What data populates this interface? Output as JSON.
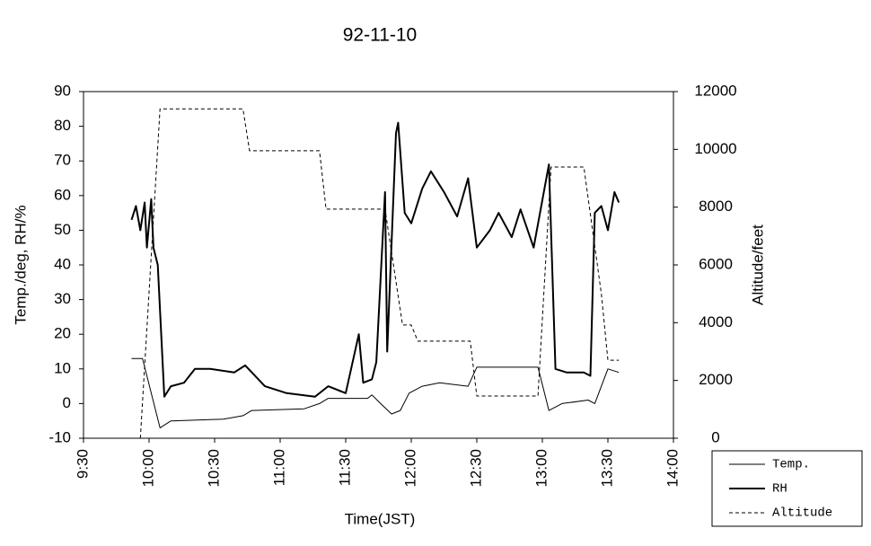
{
  "chart_data": {
    "type": "line",
    "title": "92-11-10",
    "x_label": "Time(JST)",
    "y_label": "Temp./deg, RH/%",
    "y2_label": "Altitude/feet",
    "xlim": [
      "9:30",
      "14:00"
    ],
    "xticks": [
      "9:30",
      "10:00",
      "10:30",
      "11:00",
      "11:30",
      "12:00",
      "12:30",
      "13:00",
      "13:30",
      "14:00"
    ],
    "ylim": [
      -10,
      90
    ],
    "yticks": [
      -10,
      0,
      10,
      20,
      30,
      40,
      50,
      60,
      70,
      80,
      90
    ],
    "y2lim": [
      0,
      12000
    ],
    "y2ticks": [
      0,
      2000,
      4000,
      6000,
      8000,
      10000,
      12000
    ],
    "series": [
      {
        "name": "Temp.",
        "color": "#000000",
        "linestyle": "solid",
        "linewidth": 1,
        "x": [
          "9:52",
          "9:57",
          "10:05",
          "10:10",
          "10:34",
          "10:43",
          "10:47",
          "11:11",
          "11:18",
          "11:22",
          "11:40",
          "11:42",
          "11:46",
          "11:51",
          "11:55",
          "11:59",
          "12:05",
          "12:13",
          "12:26",
          "12:30",
          "12:58",
          "13:03",
          "13:09",
          "13:21",
          "13:24",
          "13:27",
          "13:30",
          "13:35"
        ],
        "values": [
          13,
          13,
          -7,
          -5,
          -4.5,
          -3.5,
          -2,
          -1.5,
          0,
          1.5,
          1.5,
          2.5,
          0,
          -3,
          -2,
          3,
          5,
          6,
          5,
          10.5,
          10.5,
          -2,
          0,
          1,
          0,
          5,
          10,
          9
        ]
      },
      {
        "name": "RH",
        "color": "#000000",
        "linestyle": "solid",
        "linewidth": 2,
        "x": [
          "9:52",
          "9:54",
          "9:56",
          "9:58",
          "9:59",
          "10:01",
          "10:02",
          "10:04",
          "10:07",
          "10:10",
          "10:16",
          "10:21",
          "10:28",
          "10:39",
          "10:44",
          "10:53",
          "11:03",
          "11:16",
          "11:22",
          "11:30",
          "11:36",
          "11:38",
          "11:42",
          "11:44",
          "11:48",
          "11:49",
          "11:53",
          "11:54",
          "11:57",
          "12:00",
          "12:05",
          "12:09",
          "12:15",
          "12:21",
          "12:26",
          "12:30",
          "12:36",
          "12:40",
          "12:46",
          "12:50",
          "12:56",
          "13:03",
          "13:06",
          "13:11",
          "13:19",
          "13:22",
          "13:24",
          "13:27",
          "13:30",
          "13:33",
          "13:35"
        ],
        "values": [
          53,
          57,
          50,
          58,
          45,
          59,
          45,
          40,
          2,
          5,
          6,
          10,
          10,
          9,
          11,
          5,
          3,
          2,
          5,
          3,
          20,
          6,
          7,
          12,
          61,
          15,
          78,
          81,
          55,
          52,
          62,
          67,
          61,
          54,
          65,
          45,
          50,
          55,
          48,
          56,
          45,
          69,
          10,
          9,
          9,
          8,
          55,
          57,
          50,
          61,
          58
        ]
      },
      {
        "name": "Altitude",
        "color": "#000000",
        "linestyle": "dashed",
        "linewidth": 1,
        "axis": "y2",
        "x": [
          "9:56",
          "10:05",
          "10:43",
          "10:46",
          "11:18",
          "11:21",
          "11:48",
          "11:56",
          "12:00",
          "12:03",
          "12:27",
          "12:30",
          "12:58",
          "13:04",
          "13:19",
          "13:27",
          "13:30",
          "13:35"
        ],
        "values": [
          0,
          11400,
          11400,
          9950,
          9950,
          7930,
          7930,
          3920,
          3920,
          3360,
          3360,
          1460,
          1460,
          9390,
          9390,
          5000,
          2700,
          2700
        ]
      }
    ]
  }
}
